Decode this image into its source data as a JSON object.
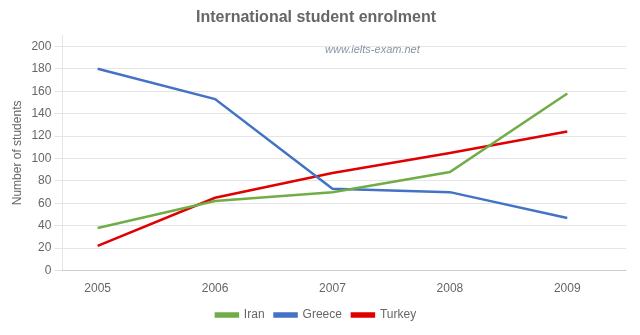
{
  "chart_data": {
    "type": "line",
    "title": "International student enrolment",
    "annotations": [
      "www.ielts-exam.net"
    ],
    "y_label": "Number of students",
    "x": [
      2005,
      2006,
      2007,
      2008,
      2009
    ],
    "series": [
      {
        "name": "Iran",
        "color": "#70ad47",
        "values": [
          38,
          62,
          70,
          88,
          158
        ]
      },
      {
        "name": "Greece",
        "color": "#4472c4",
        "values": [
          180,
          153,
          73,
          70,
          47
        ]
      },
      {
        "name": "Turkey",
        "color": "#e00000",
        "values": [
          22,
          65,
          87,
          105,
          124
        ]
      }
    ],
    "xlim": [
      2004.7,
      2009.5
    ],
    "xticks": [
      2005,
      2006,
      2007,
      2008,
      2009
    ],
    "ylim": [
      0,
      210
    ],
    "yticks": [
      0,
      20,
      40,
      60,
      80,
      100,
      120,
      140,
      160,
      180,
      200
    ],
    "grid": "y",
    "legend": "bottom"
  }
}
